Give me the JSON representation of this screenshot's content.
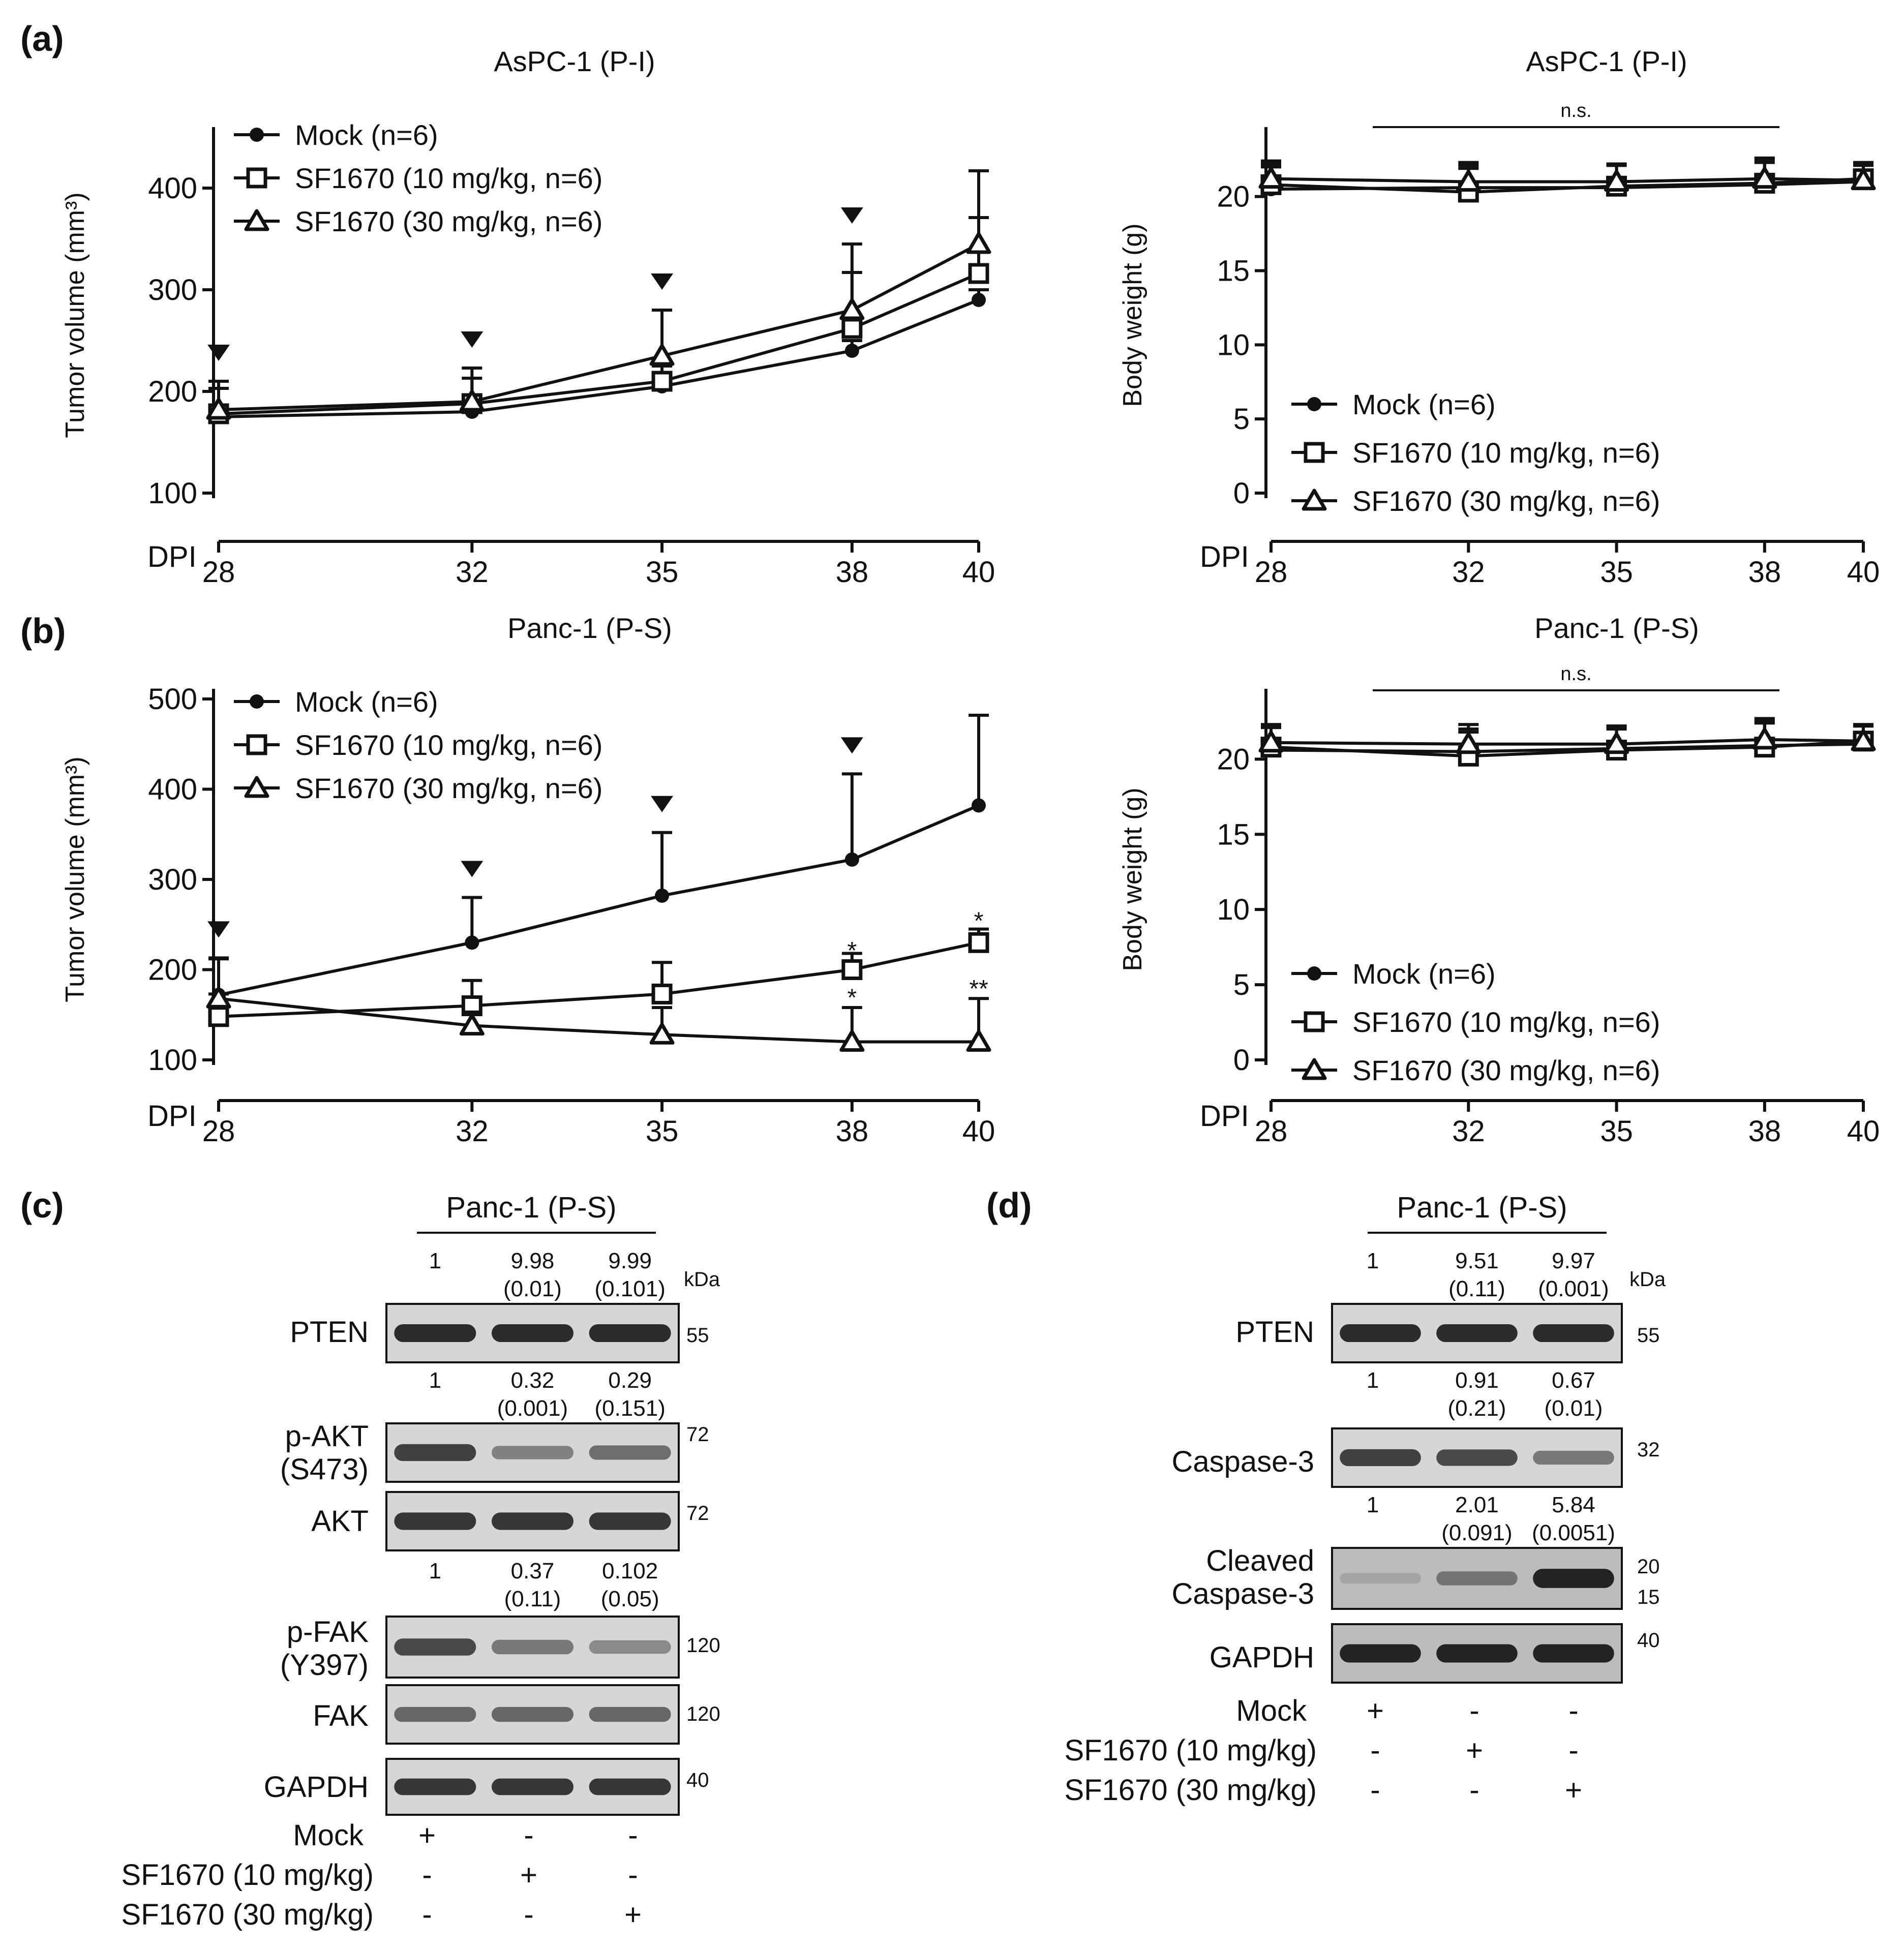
{
  "colors": {
    "ink": "#111111",
    "blot": "#d6d6d6",
    "band": "#1a1a1a",
    "dark_blot": "#bcbcbc"
  },
  "panel_labels": [
    "(a)",
    "(b)",
    "(c)",
    "(d)"
  ],
  "common": {
    "dpi_label": "DPI",
    "tumor_ylabel": "Tumor volume (mm³)",
    "body_ylabel": "Body weight (g)",
    "ns_label": "n.s.",
    "legend": [
      "Mock (n=6)",
      "SF1670 (10 mg/kg, n=6)",
      "SF1670 (30 mg/kg, n=6)"
    ]
  },
  "chart_data": [
    {
      "id": "a_tumor",
      "type": "line",
      "title": "AsPC-1 (P-I)",
      "x": [
        28,
        32,
        35,
        38,
        40
      ],
      "xlabel": "DPI",
      "ylabel": "Tumor volume (mm³)",
      "ylim": [
        100,
        450
      ],
      "yticks": [
        100,
        200,
        300,
        400
      ],
      "series": [
        {
          "name": "Mock (n=6)",
          "marker": "circle",
          "values": [
            175,
            180,
            205,
            240,
            290
          ],
          "err": [
            10,
            10,
            10,
            10,
            10
          ]
        },
        {
          "name": "SF1670 (10 mg/kg, n=6)",
          "marker": "square",
          "values": [
            178,
            188,
            210,
            262,
            316
          ],
          "err": [
            25,
            25,
            15,
            55,
            55
          ]
        },
        {
          "name": "SF1670 (30 mg/kg, n=6)",
          "marker": "triangle",
          "values": [
            182,
            190,
            235,
            280,
            345
          ],
          "err": [
            28,
            33,
            45,
            65,
            72
          ]
        }
      ],
      "annotations": [
        {
          "x": 28,
          "text": "▼"
        },
        {
          "x": 32,
          "text": "▼"
        },
        {
          "x": 35,
          "text": "▼"
        },
        {
          "x": 38,
          "text": "▼"
        }
      ]
    },
    {
      "id": "a_body",
      "type": "line",
      "title": "AsPC-1 (P-I)",
      "x": [
        28,
        32,
        35,
        38,
        40
      ],
      "xlabel": "DPI",
      "ylabel": "Body weight (g)",
      "ylim": [
        0,
        24
      ],
      "yticks": [
        0,
        5,
        10,
        15,
        20
      ],
      "series": [
        {
          "name": "Mock (n=6)",
          "marker": "circle",
          "values": [
            20.5,
            20.6,
            20.6,
            20.8,
            21.0
          ],
          "err": [
            1.5,
            1.5,
            1.5,
            1.5,
            1.2
          ]
        },
        {
          "name": "SF1670 (10 mg/kg, n=6)",
          "marker": "square",
          "values": [
            20.8,
            20.3,
            20.7,
            20.9,
            21.2
          ],
          "err": [
            1.4,
            1.6,
            1.4,
            1.6,
            1.1
          ]
        },
        {
          "name": "SF1670 (30 mg/kg, n=6)",
          "marker": "triangle",
          "values": [
            21.2,
            21.0,
            21.0,
            21.2,
            21.1
          ],
          "err": [
            1.2,
            1.3,
            1.2,
            1.4,
            1.0
          ]
        }
      ],
      "ns": "n.s."
    },
    {
      "id": "b_tumor",
      "type": "line",
      "title": "Panc-1 (P-S)",
      "x": [
        28,
        32,
        35,
        38,
        40
      ],
      "xlabel": "DPI",
      "ylabel": "Tumor volume (mm³)",
      "ylim": [
        100,
        500
      ],
      "yticks": [
        100,
        200,
        300,
        400,
        500
      ],
      "series": [
        {
          "name": "Mock (n=6)",
          "marker": "circle",
          "values": [
            172,
            230,
            282,
            322,
            382
          ],
          "err": [
            40,
            50,
            70,
            95,
            100
          ]
        },
        {
          "name": "SF1670 (10 mg/kg, n=6)",
          "marker": "square",
          "values": [
            148,
            160,
            173,
            200,
            230
          ],
          "err": [
            25,
            28,
            35,
            18,
            15
          ]
        },
        {
          "name": "SF1670 (30 mg/kg, n=6)",
          "marker": "triangle",
          "values": [
            168,
            138,
            128,
            120,
            120
          ],
          "err": [
            45,
            15,
            30,
            38,
            48
          ]
        }
      ],
      "annotations": [
        {
          "x": 28,
          "text": "▼"
        },
        {
          "x": 32,
          "text": "▼"
        },
        {
          "x": 35,
          "text": "▼"
        },
        {
          "x": 38,
          "text": "▼"
        },
        {
          "x": 38,
          "text": "*",
          "y": 212
        },
        {
          "x": 40,
          "text": "*",
          "y": 245
        },
        {
          "x": 38,
          "text": "*",
          "y": 160
        },
        {
          "x": 40,
          "text": "**",
          "y": 170
        }
      ]
    },
    {
      "id": "b_body",
      "type": "line",
      "title": "Panc-1 (P-S)",
      "x": [
        28,
        32,
        35,
        38,
        40
      ],
      "xlabel": "DPI",
      "ylabel": "Body weight (g)",
      "ylim": [
        0,
        24
      ],
      "yticks": [
        0,
        5,
        10,
        15,
        20
      ],
      "series": [
        {
          "name": "Mock (n=6)",
          "marker": "circle",
          "values": [
            20.6,
            20.5,
            20.7,
            20.9,
            21.0
          ],
          "err": [
            1.5,
            1.5,
            1.5,
            1.6,
            1.2
          ]
        },
        {
          "name": "SF1670 (10 mg/kg, n=6)",
          "marker": "square",
          "values": [
            20.8,
            20.2,
            20.6,
            20.8,
            21.2
          ],
          "err": [
            1.4,
            1.6,
            1.4,
            1.6,
            1.1
          ]
        },
        {
          "name": "SF1670 (30 mg/kg, n=6)",
          "marker": "triangle",
          "values": [
            21.1,
            21.0,
            21.0,
            21.3,
            21.2
          ],
          "err": [
            1.2,
            1.3,
            1.2,
            1.4,
            1.0
          ]
        }
      ],
      "ns": "n.s."
    }
  ],
  "blot_c": {
    "header": "Panc-1 (P-S)",
    "kda_label": "kDa",
    "pten_q": [
      "1",
      "9.98",
      "9.99"
    ],
    "pten_p": [
      "",
      "(0.01)",
      "(0.101)"
    ],
    "pakt_q": [
      "1",
      "0.32",
      "0.29"
    ],
    "pakt_p": [
      "",
      "(0.001)",
      "(0.151)"
    ],
    "pfak_q": [
      "1",
      "0.37",
      "0.102"
    ],
    "pfak_p": [
      "",
      "(0.11)",
      "(0.05)"
    ],
    "rows": {
      "pten": {
        "label": "PTEN",
        "kda": "55",
        "bands": [
          0.9,
          0.9,
          0.9
        ]
      },
      "pakt": {
        "label1": "p-AKT",
        "label2": "(S473)",
        "kda": "72",
        "bands": [
          0.8,
          0.45,
          0.55
        ]
      },
      "akt": {
        "label": "AKT",
        "kda": "72",
        "bands": [
          0.85,
          0.85,
          0.85
        ]
      },
      "pfak": {
        "label1": "p-FAK",
        "label2": "(Y397)",
        "kda": "120",
        "bands": [
          0.75,
          0.5,
          0.4
        ]
      },
      "fak": {
        "label": "FAK",
        "kda": "120",
        "bands": [
          0.6,
          0.6,
          0.6
        ]
      },
      "gapdh": {
        "label": "GAPDH",
        "kda": "40",
        "bands": [
          0.85,
          0.85,
          0.85
        ]
      }
    },
    "treatments": [
      {
        "label": "Mock",
        "signs": [
          "+",
          "-",
          "-"
        ]
      },
      {
        "label": "SF1670 (10 mg/kg)",
        "signs": [
          "-",
          "+",
          "-"
        ]
      },
      {
        "label": "SF1670 (30 mg/kg)",
        "signs": [
          "-",
          "-",
          "+"
        ]
      }
    ]
  },
  "blot_d": {
    "header": "Panc-1 (P-S)",
    "kda_label": "kDa",
    "pten_q": [
      "1",
      "9.51",
      "9.97"
    ],
    "pten_p": [
      "",
      "(0.11)",
      "(0.001)"
    ],
    "casp_q": [
      "1",
      "0.91",
      "0.67"
    ],
    "casp_p": [
      "",
      "(0.21)",
      "(0.01)"
    ],
    "cleaved_q": [
      "1",
      "2.01",
      "5.84"
    ],
    "cleaved_p": [
      "",
      "(0.091)",
      "(0.0051)"
    ],
    "rows": {
      "pten": {
        "label": "PTEN",
        "kda": "55",
        "bands": [
          0.9,
          0.9,
          0.9
        ]
      },
      "casp": {
        "label": "Caspase-3",
        "kda": "32",
        "bands": [
          0.8,
          0.75,
          0.5
        ]
      },
      "cleaved": {
        "label1": "Cleaved",
        "label2": "Caspase-3",
        "kda1": "20",
        "kda2": "15",
        "bands": [
          0.12,
          0.45,
          0.95
        ]
      },
      "gapdh": {
        "label": "GAPDH",
        "kda": "40",
        "bands": [
          0.95,
          0.95,
          0.95
        ]
      }
    },
    "treatments": [
      {
        "label": "Mock",
        "signs": [
          "+",
          "-",
          "-"
        ]
      },
      {
        "label": "SF1670 (10 mg/kg)",
        "signs": [
          "-",
          "+",
          "-"
        ]
      },
      {
        "label": "SF1670 (30 mg/kg)",
        "signs": [
          "-",
          "-",
          "+"
        ]
      }
    ]
  }
}
